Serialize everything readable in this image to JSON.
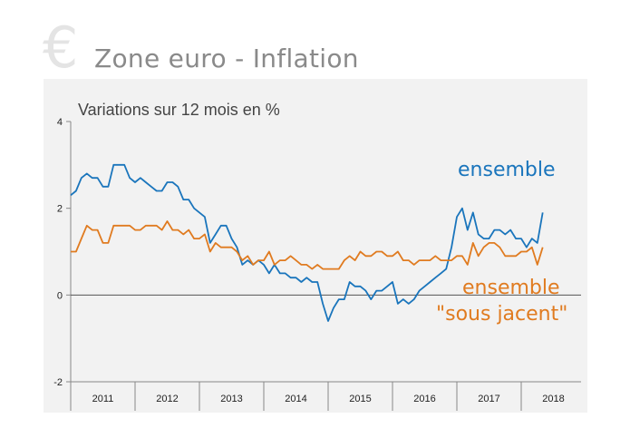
{
  "header": {
    "currency_symbol": "€",
    "title": "Zone euro - Inflation"
  },
  "chart_data": {
    "type": "line",
    "title": "Variations sur 12 mois en %",
    "xlabel": "",
    "ylabel": "",
    "ylim": [
      -2,
      4
    ],
    "yticks": [
      "4",
      "2",
      "0",
      "-2"
    ],
    "year_labels": [
      "2011",
      "2012",
      "2013",
      "2014",
      "2015",
      "2016",
      "2017",
      "2018"
    ],
    "x_start": 2011.0,
    "grid": false,
    "series": [
      {
        "name": "ensemble",
        "color": "#1a75bc",
        "values": [
          2.3,
          2.4,
          2.7,
          2.8,
          2.7,
          2.7,
          2.5,
          2.5,
          3.0,
          3.0,
          3.0,
          2.7,
          2.6,
          2.7,
          2.6,
          2.5,
          2.4,
          2.4,
          2.6,
          2.6,
          2.5,
          2.2,
          2.2,
          2.0,
          1.9,
          1.8,
          1.2,
          1.4,
          1.6,
          1.6,
          1.3,
          1.1,
          0.7,
          0.8,
          0.7,
          0.8,
          0.7,
          0.5,
          0.7,
          0.5,
          0.5,
          0.4,
          0.4,
          0.3,
          0.4,
          0.3,
          0.3,
          -0.2,
          -0.6,
          -0.3,
          -0.1,
          -0.1,
          0.3,
          0.2,
          0.2,
          0.1,
          -0.1,
          0.1,
          0.1,
          0.2,
          0.3,
          -0.2,
          -0.1,
          -0.2,
          -0.1,
          0.1,
          0.2,
          0.3,
          0.4,
          0.5,
          0.6,
          1.1,
          1.8,
          2.0,
          1.5,
          1.9,
          1.4,
          1.3,
          1.3,
          1.5,
          1.5,
          1.4,
          1.5,
          1.3,
          1.3,
          1.1,
          1.3,
          1.2,
          1.9
        ]
      },
      {
        "name": "ensemble\n\"sous jacent\"",
        "color": "#e07b20",
        "values": [
          1.0,
          1.0,
          1.3,
          1.6,
          1.5,
          1.5,
          1.2,
          1.2,
          1.6,
          1.6,
          1.6,
          1.6,
          1.5,
          1.5,
          1.6,
          1.6,
          1.6,
          1.5,
          1.7,
          1.5,
          1.5,
          1.4,
          1.5,
          1.3,
          1.3,
          1.4,
          1.0,
          1.2,
          1.1,
          1.1,
          1.1,
          1.0,
          0.8,
          0.9,
          0.7,
          0.8,
          0.8,
          1.0,
          0.7,
          0.8,
          0.8,
          0.9,
          0.8,
          0.7,
          0.7,
          0.6,
          0.7,
          0.6,
          0.6,
          0.6,
          0.6,
          0.8,
          0.9,
          0.8,
          1.0,
          0.9,
          0.9,
          1.0,
          1.0,
          0.9,
          0.9,
          1.0,
          0.8,
          0.8,
          0.7,
          0.8,
          0.8,
          0.8,
          0.9,
          0.8,
          0.8,
          0.8,
          0.9,
          0.9,
          0.7,
          1.2,
          0.9,
          1.1,
          1.2,
          1.2,
          1.1,
          0.9,
          0.9,
          0.9,
          1.0,
          1.0,
          1.1,
          0.7,
          1.1
        ]
      }
    ],
    "annotations": [
      "ensemble",
      "ensemble",
      "\"sous jacent\""
    ]
  }
}
